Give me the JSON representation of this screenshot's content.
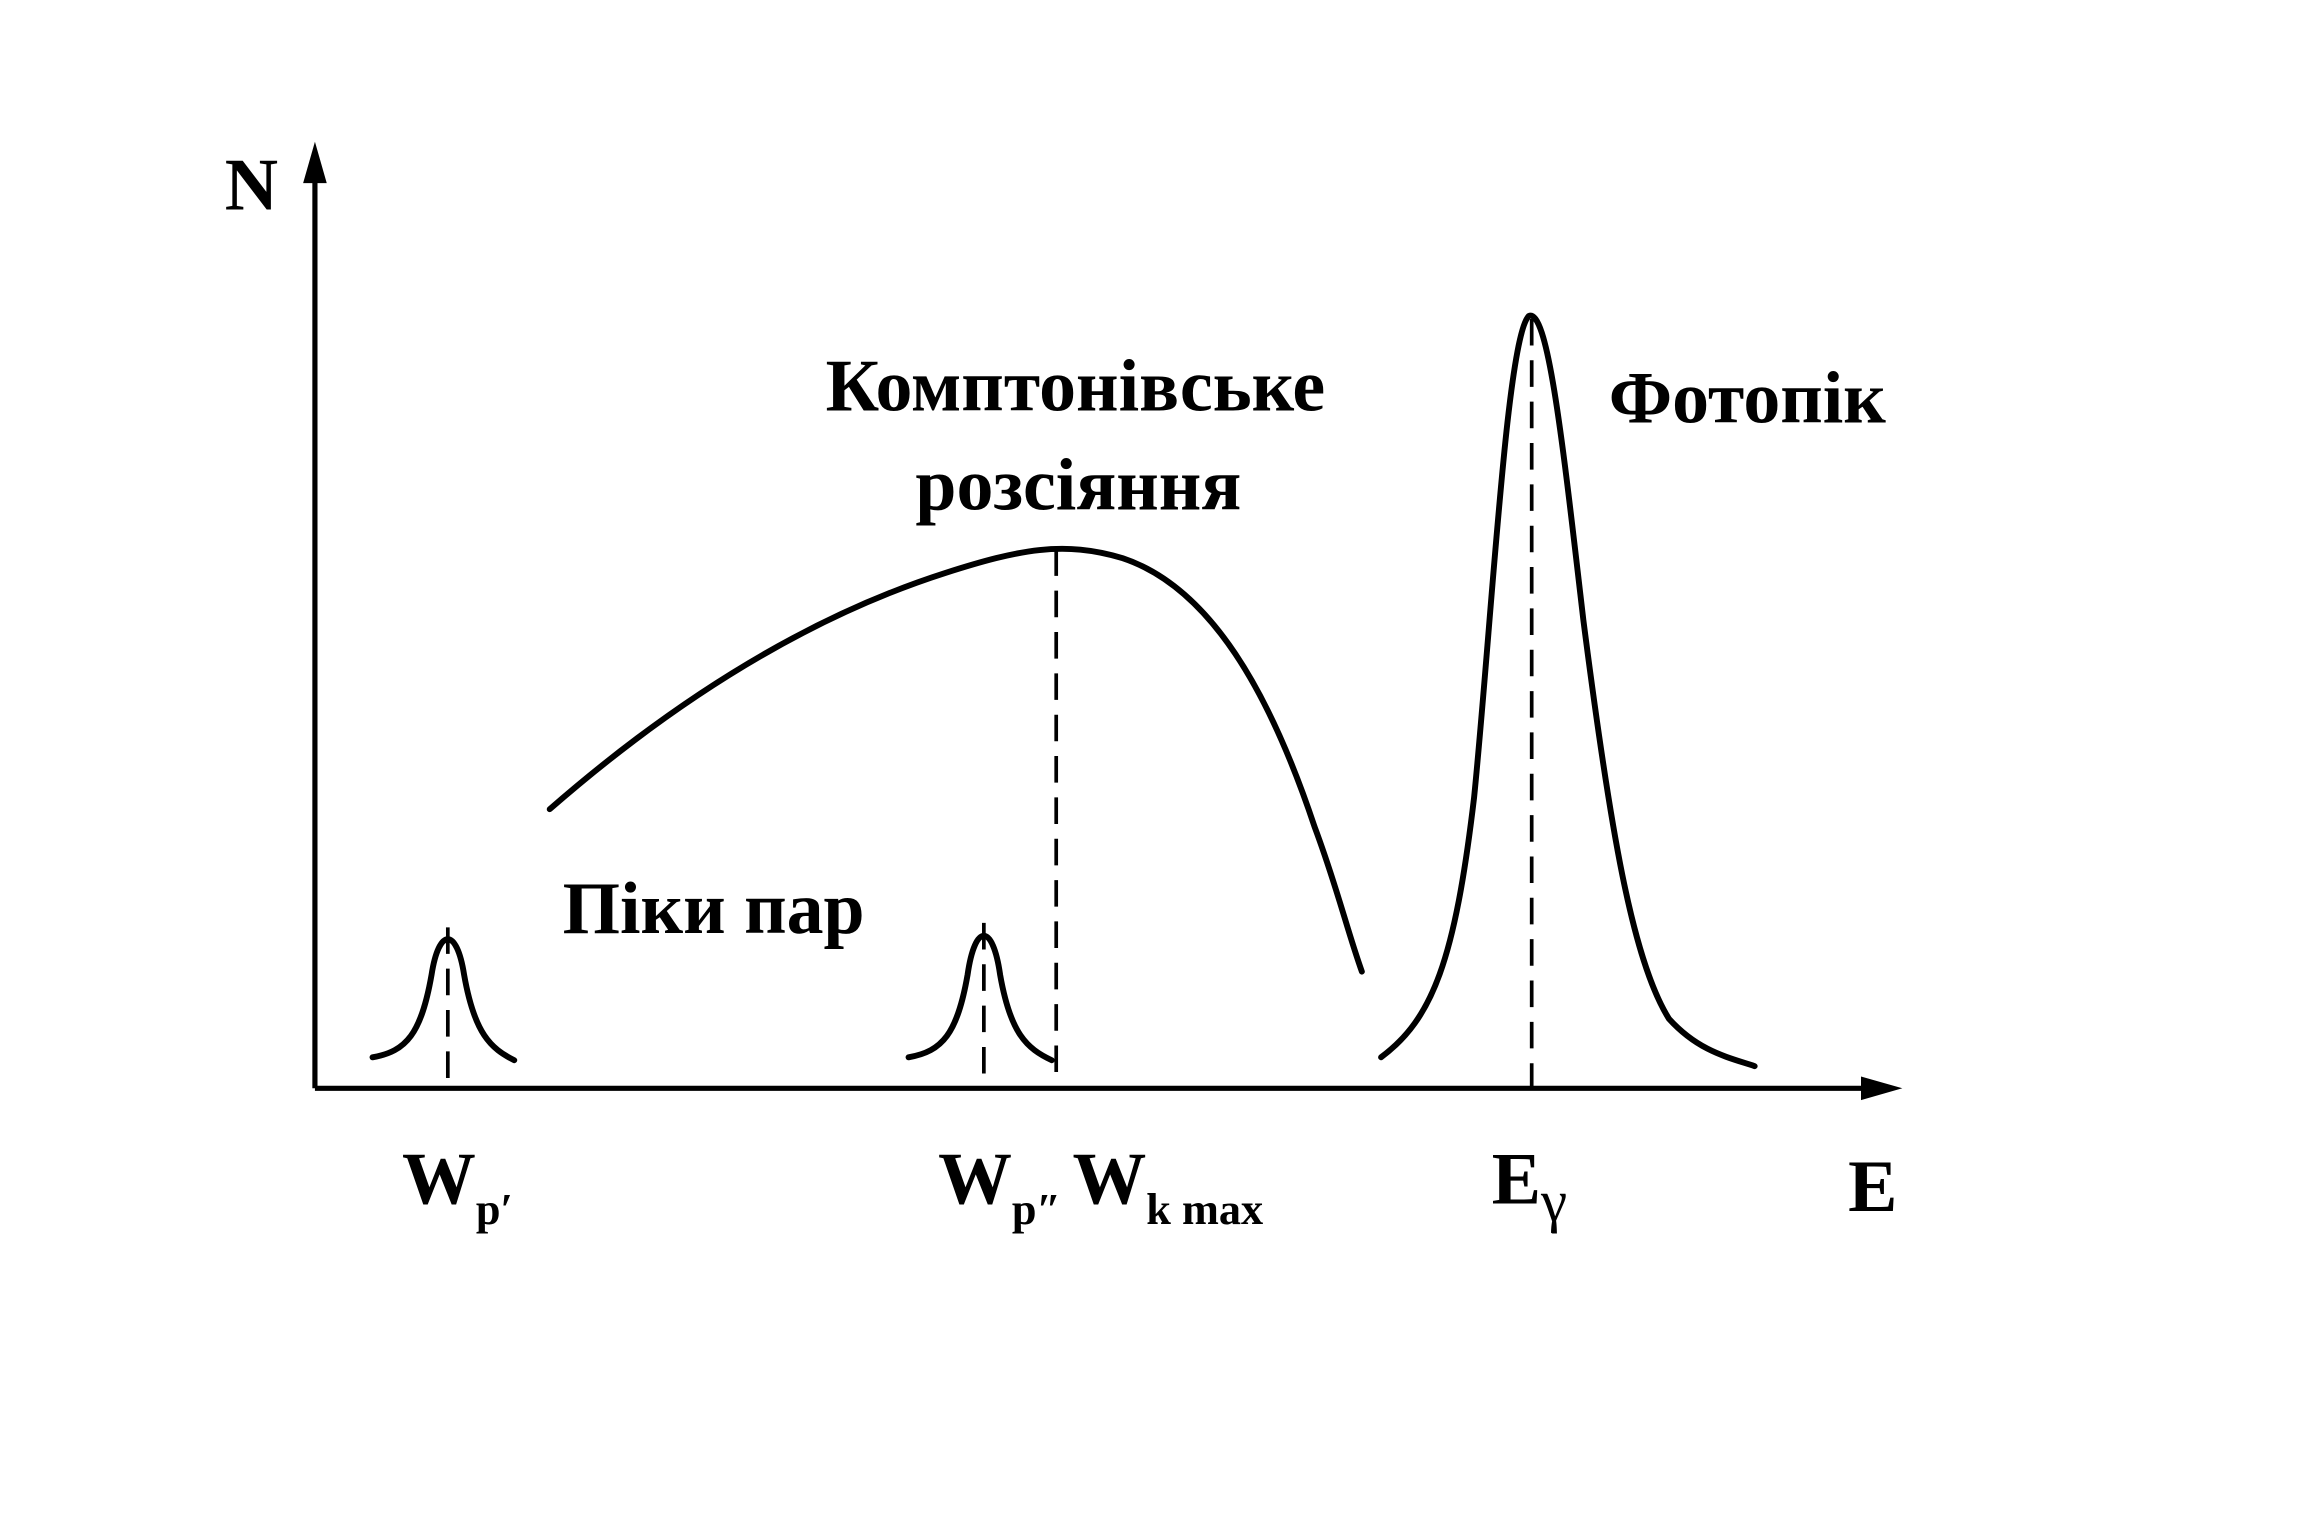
{
  "axes": {
    "y_label": "N",
    "x_label": "E"
  },
  "annotations": {
    "compton_line1": "Комптонівське",
    "compton_line2": "розсіяння",
    "photopeak": "Фотопік",
    "pair_peaks": "Піки пар"
  },
  "x_markers": [
    {
      "main": "W",
      "sub": "p′"
    },
    {
      "main": "W",
      "sub": "p″"
    },
    {
      "main": "W",
      "sub": "k max"
    },
    {
      "main": "E",
      "sub": "γ"
    }
  ]
}
